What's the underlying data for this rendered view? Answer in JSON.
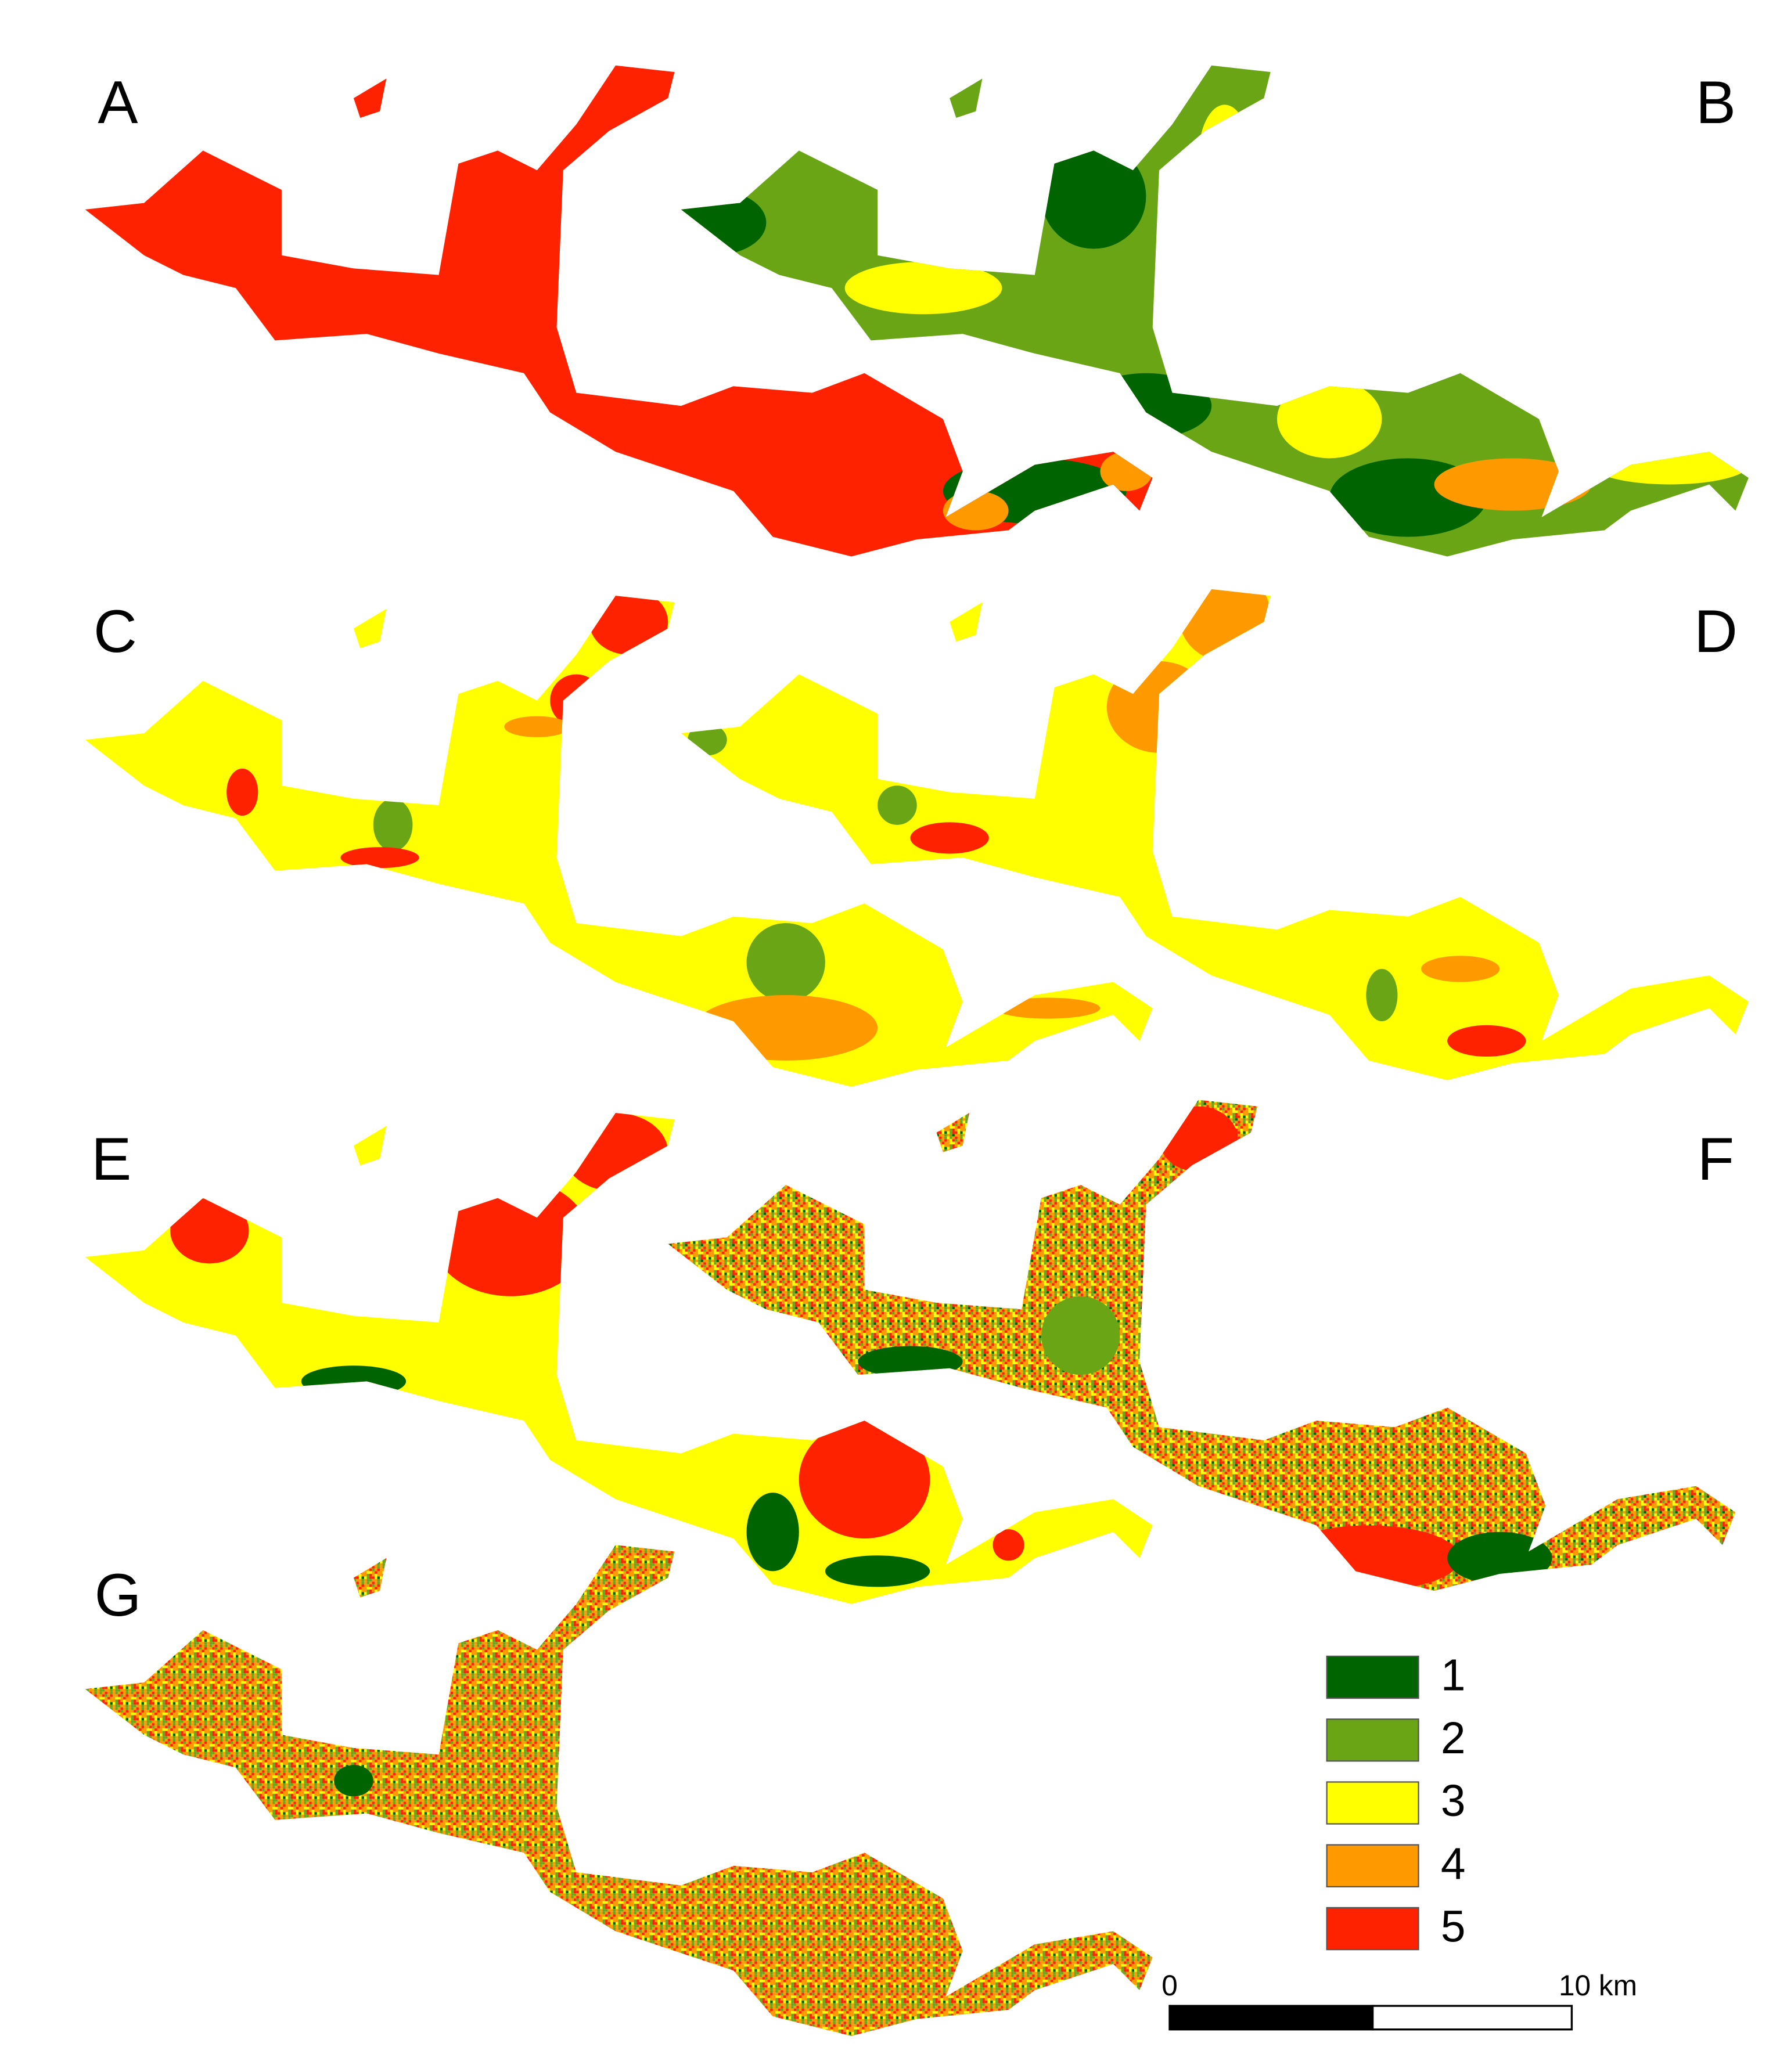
{
  "panels": {
    "labels": [
      "A",
      "B",
      "C",
      "D",
      "E",
      "F",
      "G"
    ]
  },
  "legend": {
    "items": [
      {
        "label": "1",
        "color": "#006400"
      },
      {
        "label": "2",
        "color": "#6aa516"
      },
      {
        "label": "3",
        "color": "#ffff00"
      },
      {
        "label": "4",
        "color": "#ff9900"
      },
      {
        "label": "5",
        "color": "#ff2200"
      }
    ]
  },
  "scale_bar": {
    "start_label": "0",
    "end_label": "10 km"
  }
}
